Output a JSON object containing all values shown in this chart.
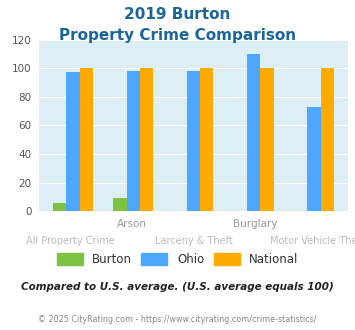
{
  "title_line1": "2019 Burton",
  "title_line2": "Property Crime Comparison",
  "groups": [
    {
      "top_label": "",
      "bottom_label": "All Property Crime",
      "burton": 6,
      "ohio": 97,
      "national": 100
    },
    {
      "top_label": "Arson",
      "bottom_label": "",
      "burton": 9,
      "ohio": 98,
      "national": 100
    },
    {
      "top_label": "",
      "bottom_label": "Larceny & Theft",
      "burton": 0,
      "ohio": 98,
      "national": 100
    },
    {
      "top_label": "Burglary",
      "bottom_label": "",
      "burton": 0,
      "ohio": 110,
      "national": 100
    },
    {
      "top_label": "",
      "bottom_label": "Motor Vehicle Theft",
      "burton": 0,
      "ohio": 73,
      "national": 100
    }
  ],
  "color_burton": "#7dc242",
  "color_ohio": "#4da6ff",
  "color_national": "#ffaa00",
  "color_title": "#1a6699",
  "color_top_label": "#999999",
  "color_bot_label": "#bbbbbb",
  "color_note": "#222222",
  "color_footer": "#888888",
  "ylim": [
    0,
    120
  ],
  "yticks": [
    0,
    20,
    40,
    60,
    80,
    100,
    120
  ],
  "background_plot": "#deeef5",
  "background_fig": "#ffffff",
  "legend_labels": [
    "Burton",
    "Ohio",
    "National"
  ],
  "note": "Compared to U.S. average. (U.S. average equals 100)",
  "footer": "© 2025 CityRating.com - https://www.cityrating.com/crime-statistics/",
  "bar_width": 0.22
}
